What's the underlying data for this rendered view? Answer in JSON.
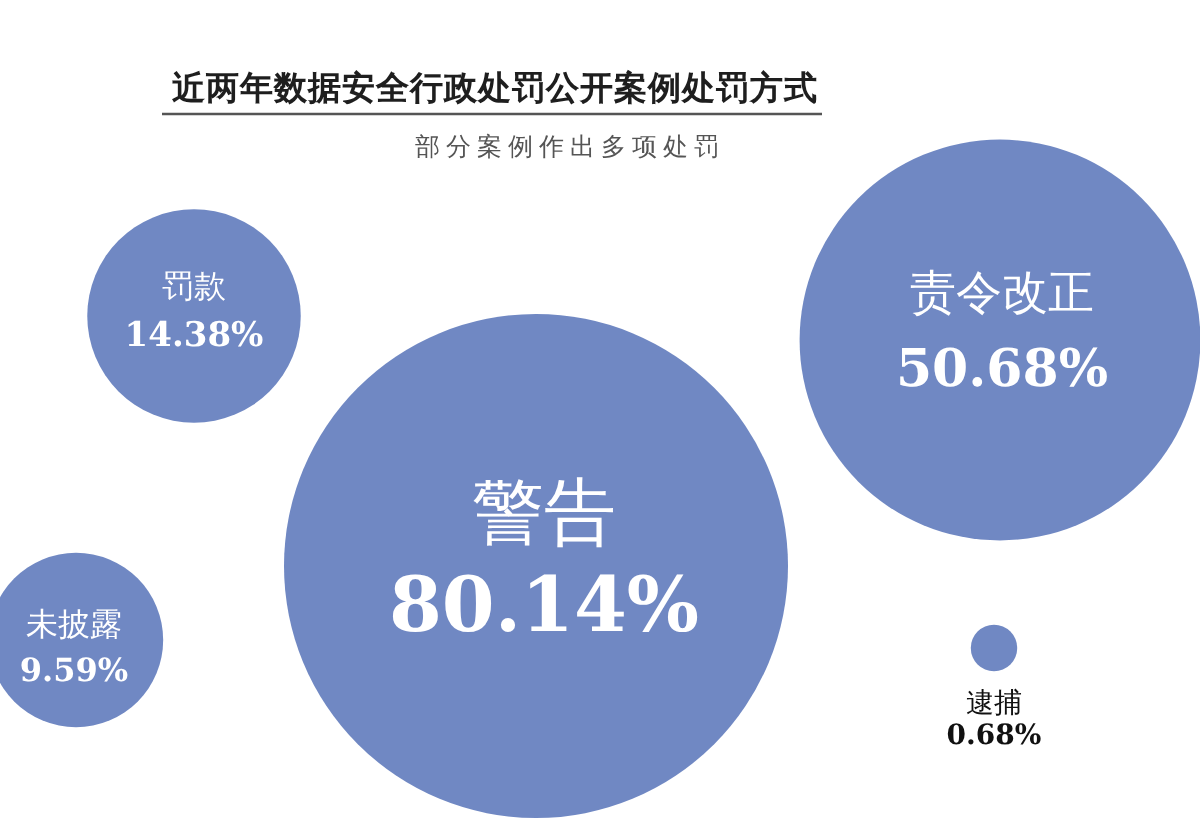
{
  "chart_data": {
    "type": "other",
    "title": "近两年数据安全行政处罚公开案例处罚方式",
    "subtitle": "部分案例作出多项处罚",
    "categories": [
      "罚款",
      "责令改正",
      "警告",
      "未披露",
      "逮捕"
    ],
    "values": [
      14.38,
      50.68,
      80.14,
      9.59,
      0.68
    ],
    "value_labels": [
      "14.38%",
      "50.68%",
      "80.14%",
      "9.59%",
      "0.68%"
    ],
    "color": "#7088c3"
  }
}
